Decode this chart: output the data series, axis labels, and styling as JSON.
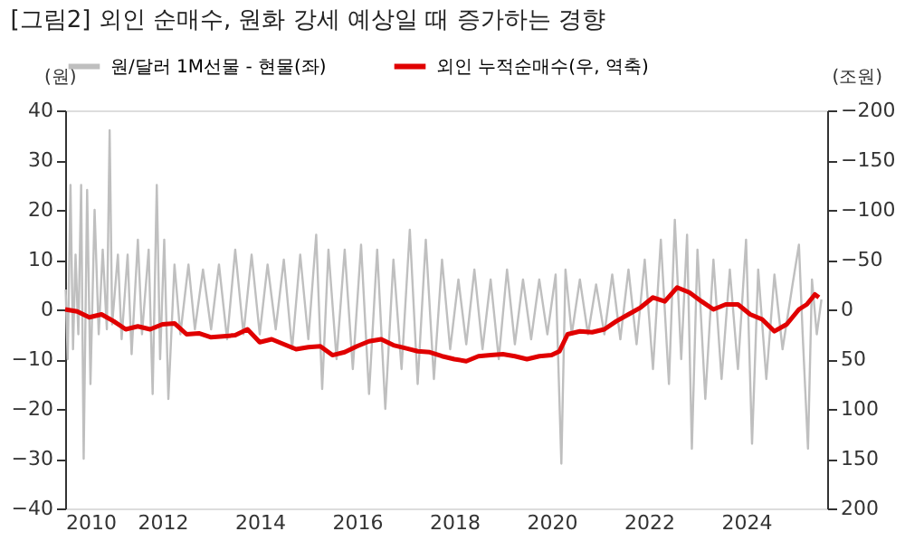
{
  "chart_data": {
    "type": "line",
    "title": "[그림2]    외인 순매수, 원화 강세 예상일 때 증가하는 경향",
    "ylabel": "(원)",
    "y2label": "(조원)",
    "xlim": [
      "2010-01-01",
      "2025-09-01"
    ],
    "xticks": [
      {
        "value": "2010-01-01",
        "label": "2010"
      },
      {
        "value": "2012-01-01",
        "label": "2012"
      },
      {
        "value": "2014-01-01",
        "label": "2014"
      },
      {
        "value": "2016-01-01",
        "label": "2016"
      },
      {
        "value": "2018-01-01",
        "label": "2018"
      },
      {
        "value": "2020-01-01",
        "label": "2020"
      },
      {
        "value": "2022-01-01",
        "label": "2022"
      },
      {
        "value": "2024-01-01",
        "label": "2024"
      }
    ],
    "ylim": [
      -40,
      40
    ],
    "yticks": [
      -40,
      -30,
      -20,
      -10,
      0,
      10,
      20,
      30,
      40
    ],
    "y2lim": [
      200,
      -200
    ],
    "y2ticks": [
      -200,
      -150,
      -100,
      -50,
      0,
      50,
      100,
      150,
      200
    ],
    "grid": false,
    "legend": "top",
    "marker": "none",
    "line_style": "solid",
    "series": [
      {
        "name": "원/달러 1M선물 - 현물(좌)",
        "color": "#bfbfbf",
        "axis": "y",
        "x": [
          "2010-01-05",
          "2010-01-20",
          "2010-02-10",
          "2010-03-01",
          "2010-03-20",
          "2010-04-10",
          "2010-05-01",
          "2010-05-20",
          "2010-06-15",
          "2010-07-10",
          "2010-08-10",
          "2010-09-10",
          "2010-10-10",
          "2010-11-10",
          "2010-12-01",
          "2010-12-20",
          "2011-02-01",
          "2011-03-01",
          "2011-04-15",
          "2011-05-15",
          "2011-07-01",
          "2011-08-01",
          "2011-09-20",
          "2011-10-20",
          "2011-11-20",
          "2011-12-15",
          "2012-01-15",
          "2012-02-15",
          "2012-04-01",
          "2012-05-15",
          "2012-07-15",
          "2012-09-01",
          "2012-11-01",
          "2013-01-01",
          "2013-03-01",
          "2013-05-01",
          "2013-07-01",
          "2013-09-01",
          "2013-11-01",
          "2014-01-01",
          "2014-03-01",
          "2014-05-01",
          "2014-07-01",
          "2014-09-01",
          "2014-11-01",
          "2015-01-01",
          "2015-03-01",
          "2015-04-15",
          "2015-06-01",
          "2015-08-01",
          "2015-10-01",
          "2015-12-01",
          "2016-02-01",
          "2016-04-01",
          "2016-06-01",
          "2016-08-01",
          "2016-10-01",
          "2016-12-01",
          "2017-02-01",
          "2017-04-01",
          "2017-06-01",
          "2017-08-01",
          "2017-10-01",
          "2017-12-01",
          "2018-02-01",
          "2018-04-01",
          "2018-06-01",
          "2018-08-01",
          "2018-10-01",
          "2018-12-01",
          "2019-02-01",
          "2019-04-01",
          "2019-06-01",
          "2019-08-01",
          "2019-10-01",
          "2019-12-01",
          "2020-02-01",
          "2020-03-15",
          "2020-04-15",
          "2020-06-01",
          "2020-08-01",
          "2020-10-01",
          "2020-12-01",
          "2021-02-01",
          "2021-04-01",
          "2021-06-01",
          "2021-08-01",
          "2021-10-01",
          "2021-12-01",
          "2022-02-01",
          "2022-04-01",
          "2022-06-01",
          "2022-07-15",
          "2022-09-01",
          "2022-10-15",
          "2022-11-20",
          "2023-01-01",
          "2023-03-01",
          "2023-05-01",
          "2023-07-01",
          "2023-09-01",
          "2023-11-01",
          "2024-01-01",
          "2024-02-15",
          "2024-04-01",
          "2024-06-01",
          "2024-08-01",
          "2024-10-01",
          "2024-12-15",
          "2025-02-01",
          "2025-03-01",
          "2025-04-10",
          "2025-05-10",
          "2025-06-15",
          "2025-07-20"
        ],
        "values": [
          4,
          -10,
          25,
          -8,
          11,
          -5,
          25,
          -30,
          24,
          -15,
          20,
          -5,
          12,
          -4,
          36,
          -3,
          11,
          -6,
          11,
          -9,
          14,
          -5,
          12,
          -17,
          25,
          -10,
          14,
          -18,
          9,
          -5,
          9,
          -4,
          8,
          -4,
          9,
          -6,
          12,
          -5,
          11,
          -5,
          9,
          -4,
          10,
          -8,
          11,
          -6,
          15,
          -16,
          12,
          -10,
          12,
          -12,
          13,
          -17,
          12,
          -20,
          10,
          -12,
          16,
          -15,
          14,
          -14,
          10,
          -8,
          6,
          -7,
          8,
          -8,
          6,
          -10,
          8,
          -7,
          6,
          -6,
          6,
          -5,
          7,
          -31,
          8,
          -5,
          6,
          -5,
          5,
          -5,
          7,
          -6,
          8,
          -7,
          10,
          -12,
          14,
          -15,
          18,
          -10,
          15,
          -28,
          12,
          -18,
          10,
          -14,
          8,
          -12,
          14,
          -27,
          8,
          -14,
          7,
          -8,
          5,
          13,
          -5,
          -28,
          6,
          -5,
          2
        ]
      },
      {
        "name": "외인 누적순매수(우, 역축)",
        "color": "#e00000",
        "axis": "y2",
        "x": [
          "2010-01-01",
          "2010-04-01",
          "2010-07-01",
          "2010-10-01",
          "2011-01-01",
          "2011-04-01",
          "2011-07-01",
          "2011-10-01",
          "2012-01-01",
          "2012-04-01",
          "2012-07-01",
          "2012-10-01",
          "2013-01-01",
          "2013-04-01",
          "2013-07-01",
          "2013-10-01",
          "2014-01-01",
          "2014-04-01",
          "2014-07-01",
          "2014-10-01",
          "2015-01-01",
          "2015-04-01",
          "2015-07-01",
          "2015-10-01",
          "2016-01-01",
          "2016-04-01",
          "2016-07-01",
          "2016-10-01",
          "2017-01-01",
          "2017-04-01",
          "2017-07-01",
          "2017-10-01",
          "2018-01-01",
          "2018-04-01",
          "2018-07-01",
          "2018-10-01",
          "2019-01-01",
          "2019-04-01",
          "2019-07-01",
          "2019-10-01",
          "2020-01-01",
          "2020-03-01",
          "2020-05-01",
          "2020-08-01",
          "2020-11-01",
          "2021-02-01",
          "2021-05-01",
          "2021-08-01",
          "2021-11-01",
          "2022-02-01",
          "2022-05-01",
          "2022-08-01",
          "2022-11-01",
          "2023-02-01",
          "2023-05-01",
          "2023-08-01",
          "2023-11-01",
          "2024-02-01",
          "2024-05-01",
          "2024-08-01",
          "2024-11-01",
          "2025-02-01",
          "2025-04-01",
          "2025-06-01",
          "2025-07-01"
        ],
        "values": [
          0,
          2,
          8,
          5,
          12,
          20,
          17,
          20,
          15,
          14,
          25,
          24,
          28,
          27,
          26,
          20,
          33,
          30,
          35,
          40,
          38,
          37,
          46,
          43,
          37,
          32,
          30,
          36,
          39,
          42,
          43,
          47,
          50,
          52,
          47,
          46,
          45,
          47,
          50,
          47,
          46,
          42,
          25,
          22,
          23,
          20,
          12,
          5,
          -2,
          -12,
          -8,
          -22,
          -17,
          -8,
          0,
          -5,
          -5,
          5,
          10,
          22,
          15,
          0,
          -5,
          -15,
          -12
        ]
      }
    ]
  }
}
